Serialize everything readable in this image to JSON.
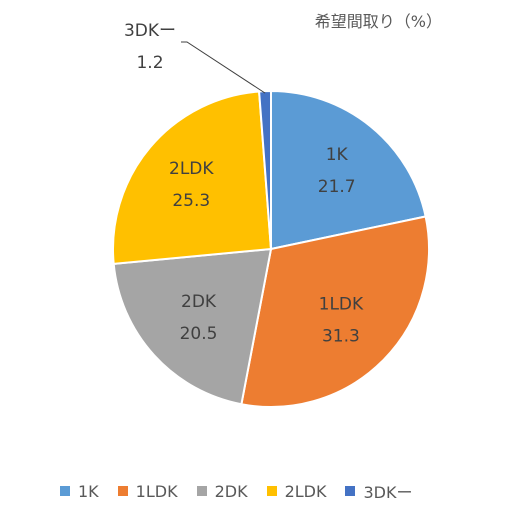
{
  "chart_data": {
    "type": "pie",
    "title": "希望間取り（%）",
    "categories": [
      "1K",
      "1LDK",
      "2DK",
      "2LDK",
      "3DKー"
    ],
    "values": [
      21.7,
      31.3,
      20.5,
      25.3,
      1.2
    ],
    "colors": [
      "#5b9bd5",
      "#ed7d31",
      "#a5a5a5",
      "#ffc000",
      "#4472c4"
    ],
    "data_labels": [
      "21.7",
      "31.3",
      "20.5",
      "25.3",
      "1.2"
    ],
    "legend_position": "bottom",
    "start_angle": "12 o'clock",
    "direction": "clockwise"
  }
}
